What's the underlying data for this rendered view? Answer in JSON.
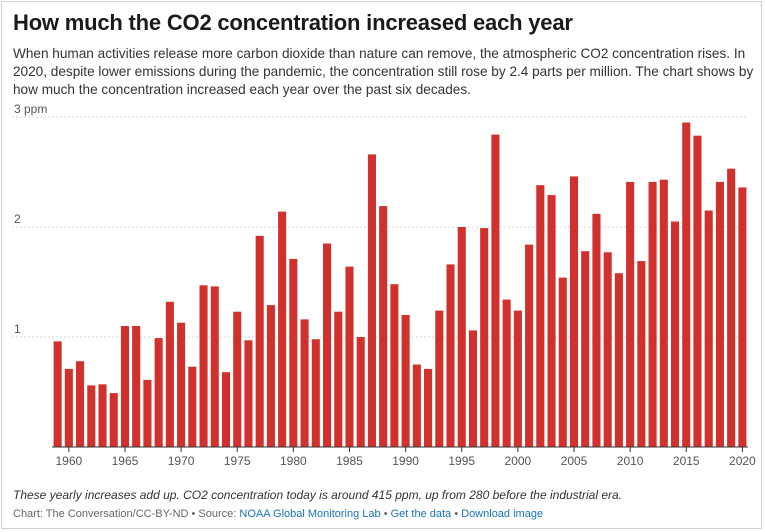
{
  "header": {
    "title": "How much the CO2 concentration increased each year",
    "subtitle": "When human activities release more carbon dioxide than nature can remove, the atmospheric CO2 concentration rises. In 2020, despite lower emissions during the pandemic, the concentration still rose by 2.4 parts per million. The chart shows by how much the concentration increased each year over the past six decades."
  },
  "chart_data": {
    "type": "bar",
    "color": "#d0312d",
    "ylim": [
      0,
      3
    ],
    "yticks": [
      {
        "value": 1,
        "label": "1"
      },
      {
        "value": 2,
        "label": "2"
      },
      {
        "value": 3,
        "label": "3 ppm"
      }
    ],
    "xticks": [
      1960,
      1965,
      1970,
      1975,
      1980,
      1985,
      1990,
      1995,
      2000,
      2005,
      2010,
      2015,
      2020
    ],
    "x": [
      1959,
      1960,
      1961,
      1962,
      1963,
      1964,
      1965,
      1966,
      1967,
      1968,
      1969,
      1970,
      1971,
      1972,
      1973,
      1974,
      1975,
      1976,
      1977,
      1978,
      1979,
      1980,
      1981,
      1982,
      1983,
      1984,
      1985,
      1986,
      1987,
      1988,
      1989,
      1990,
      1991,
      1992,
      1993,
      1994,
      1995,
      1996,
      1997,
      1998,
      1999,
      2000,
      2001,
      2002,
      2003,
      2004,
      2005,
      2006,
      2007,
      2008,
      2009,
      2010,
      2011,
      2012,
      2013,
      2014,
      2015,
      2016,
      2017,
      2018,
      2019,
      2020
    ],
    "values": [
      0.96,
      0.71,
      0.78,
      0.56,
      0.57,
      0.49,
      1.1,
      1.1,
      0.61,
      0.99,
      1.32,
      1.13,
      0.73,
      1.47,
      1.46,
      0.68,
      1.23,
      0.97,
      1.92,
      1.29,
      2.14,
      1.71,
      1.16,
      0.98,
      1.85,
      1.23,
      1.64,
      1.0,
      2.66,
      2.19,
      1.48,
      1.2,
      0.75,
      0.71,
      1.24,
      1.66,
      2.0,
      1.06,
      1.99,
      2.84,
      1.34,
      1.24,
      1.84,
      2.38,
      2.29,
      1.54,
      2.46,
      1.78,
      2.12,
      1.77,
      1.58,
      2.41,
      1.69,
      2.41,
      2.43,
      2.05,
      2.95,
      2.83,
      2.15,
      2.41,
      2.53,
      2.36
    ]
  },
  "footer": {
    "note": "These yearly increases add up. CO2 concentration today is around 415 ppm, up from 280 before the industrial era.",
    "credit_prefix": "Chart: The Conversation/CC-BY-ND • Source: ",
    "source": "NOAA Global Monitoring Lab",
    "sep1": " • ",
    "get_data": "Get the data",
    "sep2": " • ",
    "download": "Download image"
  }
}
